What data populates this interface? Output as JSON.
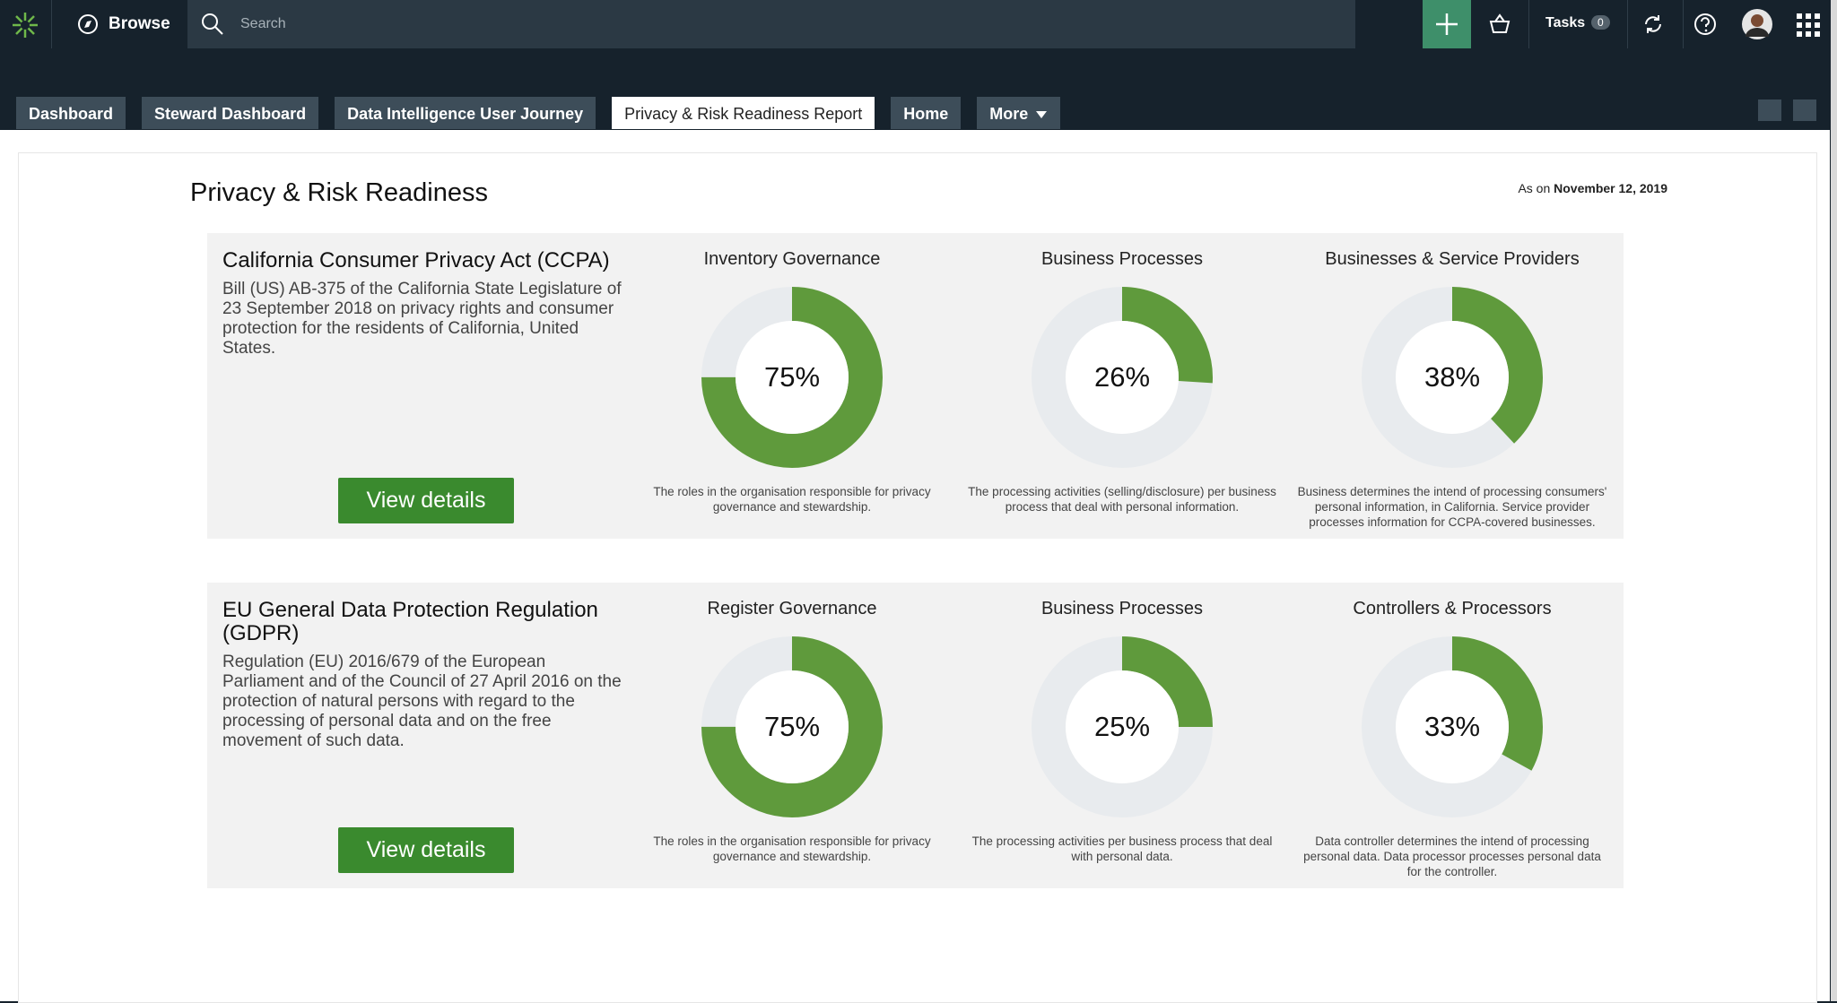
{
  "nav": {
    "browse": "Browse",
    "search_placeholder": "Search",
    "tasks": "Tasks",
    "tasks_count": "0"
  },
  "tabs": [
    "Dashboard",
    "Steward Dashboard",
    "Data Intelligence User Journey",
    "Privacy & Risk Readiness Report",
    "Home",
    "More"
  ],
  "report": {
    "title": "Privacy & Risk Readiness",
    "as_on": "As on",
    "date": "November 12, 2019",
    "scale_max": 100,
    "sections": [
      {
        "title": "California Consumer Privacy Act (CCPA)",
        "description": "Bill (US) AB-375 of the California State Legislature of 23 September 2018 on privacy rights and consumer protection for the residents of California, United States.",
        "button": "View details",
        "gauges": [
          {
            "title": "Inventory Governance",
            "value": 75,
            "value_label": "75%",
            "description": "The roles in the organisation responsible for privacy governance and stewardship."
          },
          {
            "title": "Business Processes",
            "value": 26,
            "value_label": "26%",
            "description": "The processing activities (selling/disclosure) per business process that deal with personal information."
          },
          {
            "title": "Businesses & Service Providers",
            "value": 38,
            "value_label": "38%",
            "description": "Business determines the intend of processing consumers' personal information, in California. Service provider processes information for CCPA-covered businesses."
          }
        ]
      },
      {
        "title": "EU General Data Protection Regulation (GDPR)",
        "description": "Regulation (EU) 2016/679 of the European Parliament and of the Council of 27 April 2016 on the protection of natural persons with regard to the processing of personal data and on the free movement of such data.",
        "button": "View details",
        "gauges": [
          {
            "title": "Register Governance",
            "value": 75,
            "value_label": "75%",
            "description": "The roles in the organisation responsible for privacy governance and stewardship."
          },
          {
            "title": "Business Processes",
            "value": 25,
            "value_label": "25%",
            "description": "The processing activities per business process that deal with personal data."
          },
          {
            "title": "Controllers & Processors",
            "value": 33,
            "value_label": "33%",
            "description": "Data controller determines the intend of processing personal data. Data processor processes personal data for the controller."
          }
        ]
      }
    ]
  }
}
